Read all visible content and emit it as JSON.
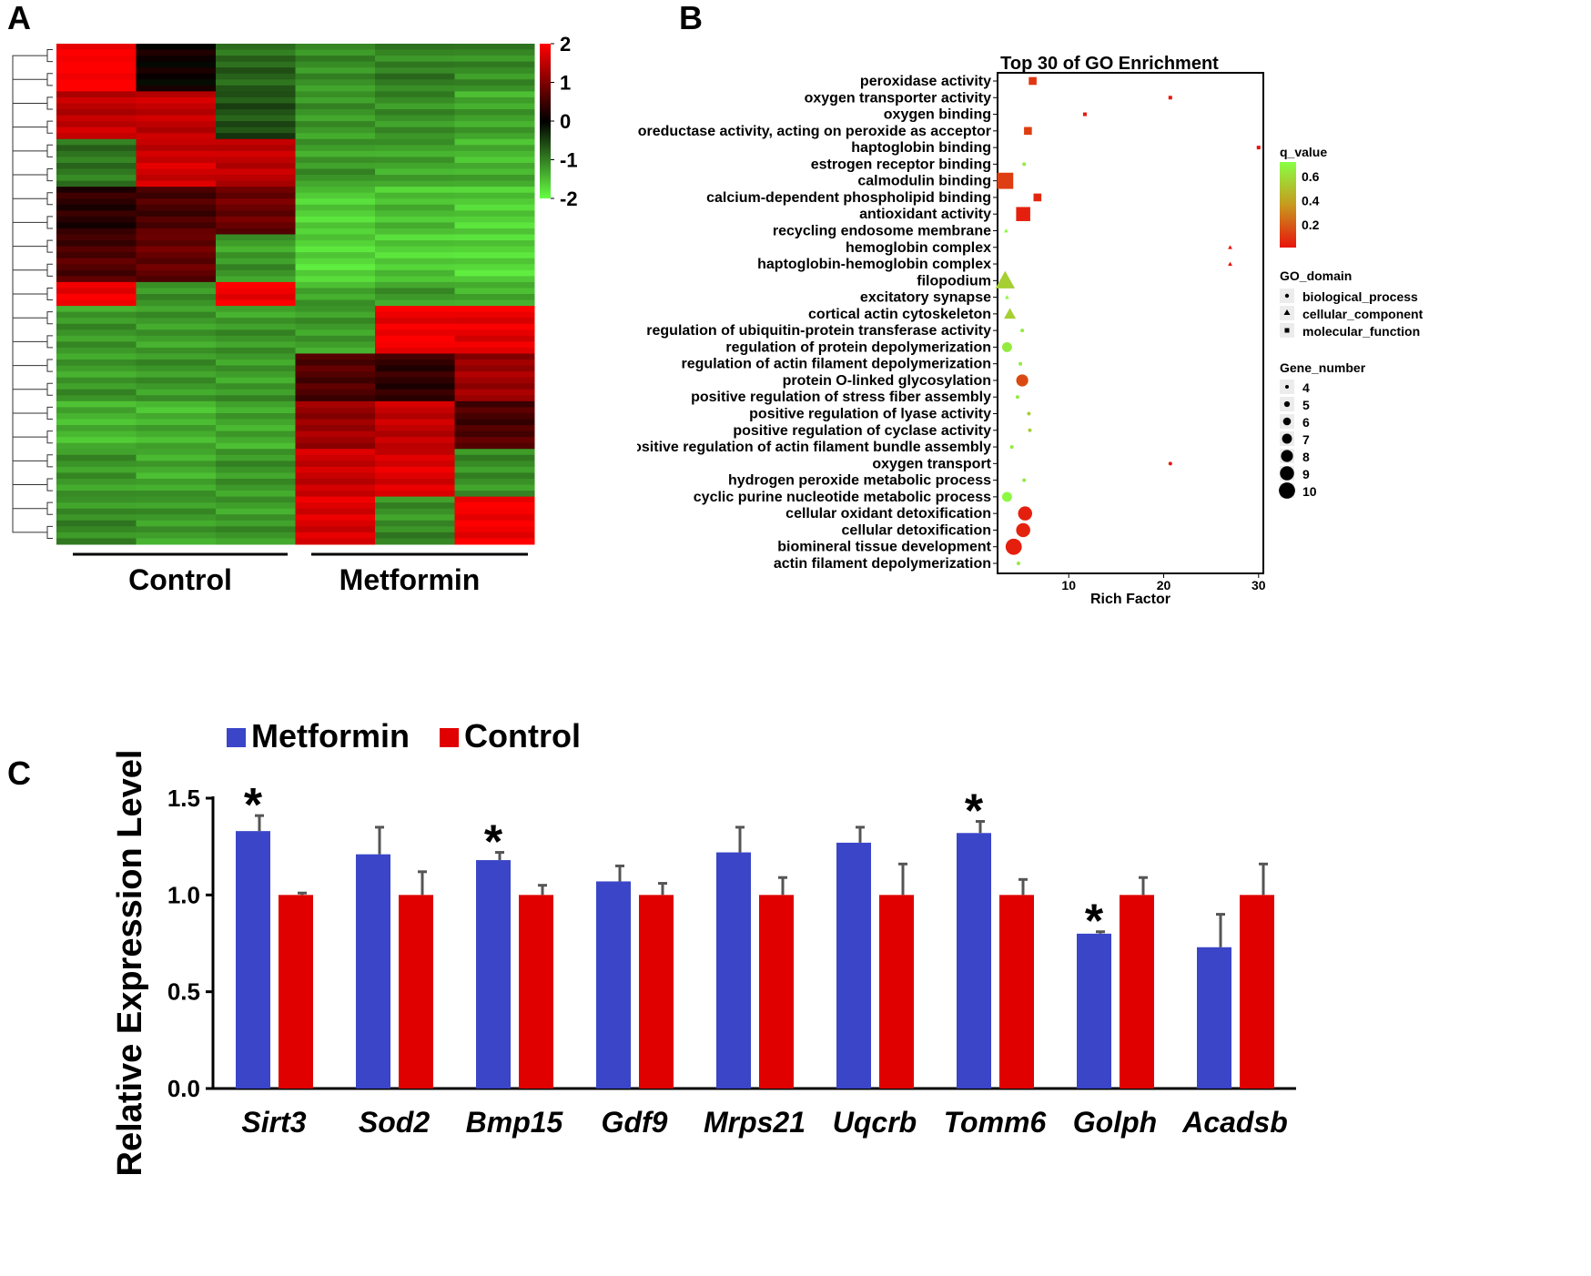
{
  "panels": {
    "a": "A",
    "b": "B",
    "c": "C"
  },
  "chart_data": [
    {
      "id": "heatmap",
      "type": "heatmap",
      "groups": [
        "Control",
        "Metformin"
      ],
      "colorbar": {
        "ticks": [
          "2",
          "1",
          "0",
          "-1",
          "-2"
        ],
        "values": [
          2,
          1,
          0,
          -1,
          -2
        ],
        "low_color": "#66ff44",
        "mid_color": "#000000",
        "high_color": "#ff0000"
      },
      "row_blocks": [
        {
          "rows": 8,
          "values": [
            2.0,
            0.1,
            -0.8,
            -1.1,
            -1.0,
            -1.1
          ]
        },
        {
          "rows": 8,
          "values": [
            1.5,
            1.5,
            -0.6,
            -1.2,
            -1.1,
            -1.3
          ]
        },
        {
          "rows": 8,
          "values": [
            -0.9,
            1.6,
            1.5,
            -1.2,
            -1.3,
            -1.4
          ]
        },
        {
          "rows": 8,
          "values": [
            0.3,
            0.6,
            0.8,
            -1.6,
            -1.5,
            -1.6
          ]
        },
        {
          "rows": 8,
          "values": [
            0.6,
            0.8,
            -1.2,
            -1.7,
            -1.6,
            -1.7
          ]
        },
        {
          "rows": 4,
          "values": [
            1.9,
            -1.2,
            1.9,
            -1.3,
            -1.2,
            -1.3
          ]
        },
        {
          "rows": 8,
          "values": [
            -1.2,
            -1.2,
            -1.2,
            -1.2,
            1.9,
            1.8
          ]
        },
        {
          "rows": 8,
          "values": [
            -1.2,
            -1.2,
            -1.2,
            0.6,
            0.4,
            1.2
          ]
        },
        {
          "rows": 8,
          "values": [
            -1.4,
            -1.4,
            -1.3,
            1.2,
            1.5,
            0.6
          ]
        },
        {
          "rows": 8,
          "values": [
            -1.2,
            -1.3,
            -1.2,
            1.6,
            1.7,
            -1.1
          ]
        },
        {
          "rows": 8,
          "values": [
            -1.1,
            -1.2,
            -1.2,
            1.7,
            -1.1,
            1.9
          ]
        }
      ]
    },
    {
      "id": "go_enrichment",
      "type": "scatter",
      "title": "Top 30 of GO Enrichment",
      "xlabel": "Rich Factor",
      "xlim": [
        2.5,
        30.5
      ],
      "xticks": [
        10,
        20,
        30
      ],
      "terms": [
        {
          "term": "peroxidase activity",
          "rich": 6.2,
          "q": 0.1,
          "genes": 6,
          "domain": "molecular_function"
        },
        {
          "term": "oxygen transporter activity",
          "rich": 20.7,
          "q": 0.02,
          "genes": 4,
          "domain": "molecular_function"
        },
        {
          "term": "oxygen binding",
          "rich": 11.7,
          "q": 0.02,
          "genes": 4,
          "domain": "molecular_function"
        },
        {
          "term": "oxidoreductase activity, acting on peroxide as acceptor",
          "rich": 5.7,
          "q": 0.12,
          "genes": 6,
          "domain": "molecular_function"
        },
        {
          "term": "haptoglobin binding",
          "rich": 30.0,
          "q": 0.01,
          "genes": 4,
          "domain": "molecular_function"
        },
        {
          "term": "estrogen receptor binding",
          "rich": 5.3,
          "q": 0.65,
          "genes": 4,
          "domain": "biological_process"
        },
        {
          "term": "calmodulin binding",
          "rich": 3.3,
          "q": 0.12,
          "genes": 10,
          "domain": "molecular_function"
        },
        {
          "term": "calcium-dependent phospholipid binding",
          "rich": 6.7,
          "q": 0.06,
          "genes": 6,
          "domain": "molecular_function"
        },
        {
          "term": "antioxidant activity",
          "rich": 5.2,
          "q": 0.04,
          "genes": 9,
          "domain": "molecular_function"
        },
        {
          "term": "recycling endosome membrane",
          "rich": 3.4,
          "q": 0.7,
          "genes": 4,
          "domain": "cellular_component"
        },
        {
          "term": "hemoglobin complex",
          "rich": 27.0,
          "q": 0.01,
          "genes": 4,
          "domain": "cellular_component"
        },
        {
          "term": "haptoglobin-hemoglobin complex",
          "rich": 27.0,
          "q": 0.01,
          "genes": 4,
          "domain": "cellular_component"
        },
        {
          "term": "filopodium",
          "rich": 3.3,
          "q": 0.55,
          "genes": 10,
          "domain": "cellular_component"
        },
        {
          "term": "excitatory synapse",
          "rich": 3.5,
          "q": 0.7,
          "genes": 4,
          "domain": "cellular_component"
        },
        {
          "term": "cortical actin cytoskeleton",
          "rich": 3.8,
          "q": 0.55,
          "genes": 7,
          "domain": "cellular_component"
        },
        {
          "term": "regulation of ubiquitin-protein transferase activity",
          "rich": 5.1,
          "q": 0.65,
          "genes": 4,
          "domain": "biological_process"
        },
        {
          "term": "regulation of protein depolymerization",
          "rich": 3.5,
          "q": 0.65,
          "genes": 7,
          "domain": "biological_process"
        },
        {
          "term": "regulation of actin filament depolymerization",
          "rich": 4.9,
          "q": 0.65,
          "genes": 4,
          "domain": "biological_process"
        },
        {
          "term": "protein O-linked glycosylation",
          "rich": 5.1,
          "q": 0.15,
          "genes": 8,
          "domain": "biological_process"
        },
        {
          "term": "positive regulation of stress fiber assembly",
          "rich": 4.6,
          "q": 0.65,
          "genes": 4,
          "domain": "biological_process"
        },
        {
          "term": "positive regulation of lyase activity",
          "rich": 5.8,
          "q": 0.55,
          "genes": 4,
          "domain": "biological_process"
        },
        {
          "term": "positive regulation of cyclase activity",
          "rich": 5.9,
          "q": 0.55,
          "genes": 4,
          "domain": "biological_process"
        },
        {
          "term": "positive regulation of actin filament bundle assembly",
          "rich": 4.0,
          "q": 0.65,
          "genes": 4,
          "domain": "biological_process"
        },
        {
          "term": "oxygen transport",
          "rich": 20.7,
          "q": 0.02,
          "genes": 4,
          "domain": "biological_process"
        },
        {
          "term": "hydrogen peroxide metabolic process",
          "rich": 5.3,
          "q": 0.65,
          "genes": 4,
          "domain": "biological_process"
        },
        {
          "term": "cyclic purine nucleotide metabolic process",
          "rich": 3.5,
          "q": 0.7,
          "genes": 7,
          "domain": "biological_process"
        },
        {
          "term": "cellular oxidant detoxification",
          "rich": 5.4,
          "q": 0.04,
          "genes": 9,
          "domain": "biological_process"
        },
        {
          "term": "cellular detoxification",
          "rich": 5.2,
          "q": 0.05,
          "genes": 9,
          "domain": "biological_process"
        },
        {
          "term": "biomineral tissue development",
          "rich": 4.2,
          "q": 0.04,
          "genes": 10,
          "domain": "biological_process"
        },
        {
          "term": "actin filament depolymerization",
          "rich": 4.7,
          "q": 0.65,
          "genes": 4,
          "domain": "biological_process"
        }
      ],
      "legend": {
        "q_title": "q_value",
        "q_ticks": [
          {
            "label": "0.6",
            "value": 0.6
          },
          {
            "label": "0.4",
            "value": 0.4
          },
          {
            "label": "0.2",
            "value": 0.2
          }
        ],
        "q_range": [
          0.01,
          0.72
        ],
        "q_colors": {
          "low": "#e8140c",
          "mid": "#c79a1e",
          "high": "#88ff44"
        },
        "domain_title": "GO_domain",
        "domains": [
          "biological_process",
          "cellular_component",
          "molecular_function"
        ],
        "gene_title": "Gene_number",
        "gene_counts": [
          4,
          5,
          6,
          7,
          8,
          9,
          10
        ]
      }
    },
    {
      "id": "qpcr",
      "type": "bar",
      "ylabel": "Relative Expression Level",
      "ylim": [
        0,
        1.5
      ],
      "yticks": [
        {
          "label": "0.0",
          "value": 0.0
        },
        {
          "label": "0.5",
          "value": 0.5
        },
        {
          "label": "1.0",
          "value": 1.0
        },
        {
          "label": "1.5",
          "value": 1.5
        }
      ],
      "categories": [
        "Sirt3",
        "Sod2",
        "Bmp15",
        "Gdf9",
        "Mrps21",
        "Uqcrb",
        "Tomm6",
        "Golph",
        "Acadsb"
      ],
      "series": [
        {
          "name": "Metformin",
          "color": "#3a45c8",
          "values": [
            1.33,
            1.21,
            1.18,
            1.07,
            1.22,
            1.27,
            1.32,
            0.8,
            0.73
          ],
          "errors": [
            0.08,
            0.14,
            0.04,
            0.08,
            0.13,
            0.08,
            0.06,
            0.01,
            0.17
          ]
        },
        {
          "name": "Control",
          "color": "#e00000",
          "values": [
            1.0,
            1.0,
            1.0,
            1.0,
            1.0,
            1.0,
            1.0,
            1.0,
            1.0
          ],
          "errors": [
            0.01,
            0.12,
            0.05,
            0.06,
            0.09,
            0.16,
            0.08,
            0.09,
            0.16
          ]
        }
      ],
      "significance": [
        {
          "category": "Sirt3",
          "series": "Metformin",
          "mark": "*"
        },
        {
          "category": "Bmp15",
          "series": "Metformin",
          "mark": "*"
        },
        {
          "category": "Tomm6",
          "series": "Metformin",
          "mark": "*"
        },
        {
          "category": "Golph",
          "series": "Metformin",
          "mark": "*"
        }
      ]
    }
  ]
}
